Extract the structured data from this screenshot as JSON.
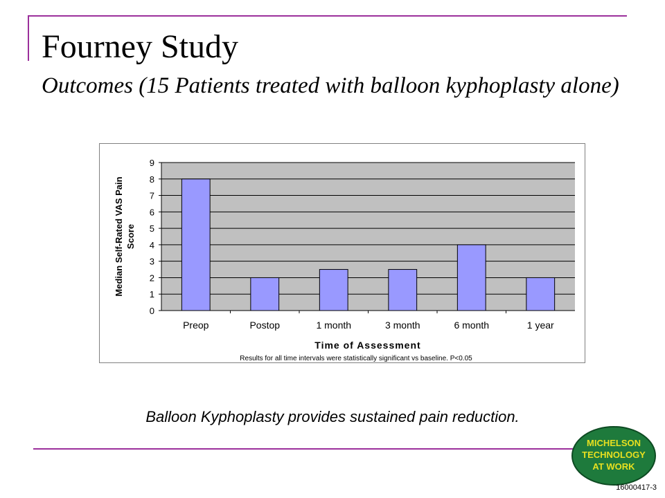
{
  "slide": {
    "title": "Fourney Study",
    "subtitle": "Outcomes (15 Patients treated with balloon kyphoplasty alone)",
    "caption": "Balloon Kyphoplasty provides sustained pain reduction.",
    "slide_id": "16000417-3",
    "logo_text": [
      "MICHELSON",
      "TECHNOLOGY",
      "AT WORK"
    ]
  },
  "colors": {
    "accent_rule": "#9b2f9b",
    "bar_fill": "#9999ff",
    "plot_bg": "#c0c0c0",
    "logo_fill": "#1e7a3c",
    "logo_text": "#e8e020"
  },
  "chart_data": {
    "type": "bar",
    "categories": [
      "Preop",
      "Postop",
      "1 month",
      "3 month",
      "6 month",
      "1 year"
    ],
    "values": [
      8,
      2,
      2.5,
      2.5,
      4,
      2
    ],
    "title": "",
    "xlabel": "Time of Assessment",
    "ylabel": "Median Self-Rated VAS Pain Score",
    "ylim": [
      0,
      9
    ],
    "yticks": [
      0,
      1,
      2,
      3,
      4,
      5,
      6,
      7,
      8,
      9
    ],
    "grid": true,
    "legend": "none",
    "footnote": "Results for all time intervals were  statistically significant vs baseline.  P<0.05"
  }
}
